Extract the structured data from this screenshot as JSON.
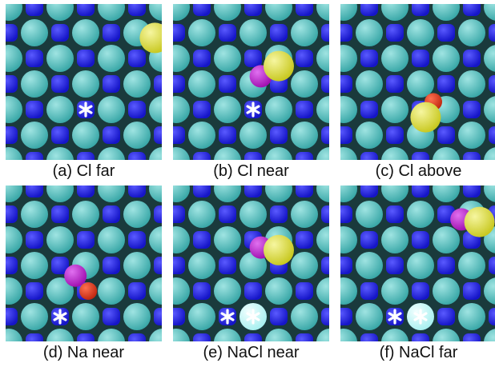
{
  "panels": [
    {
      "caption": "(a) Cl far",
      "light_ions": [
        [
          3,
          4
        ]
      ],
      "asterisks": [
        [
          3,
          4
        ]
      ],
      "adsorbates": [
        {
          "type": "cl",
          "g": [
            5.7,
            1.2
          ]
        }
      ]
    },
    {
      "caption": "(b) Cl near",
      "light_ions": [
        [
          3,
          4
        ]
      ],
      "asterisks": [
        [
          3,
          4
        ]
      ],
      "adsorbates": [
        {
          "type": "na",
          "g": [
            3.3,
            2.7
          ]
        },
        {
          "type": "cl",
          "g": [
            4.0,
            2.3
          ]
        }
      ]
    },
    {
      "caption": "(c) Cl above",
      "light_ions": [],
      "asterisks": [],
      "adsorbates": [
        {
          "type": "o",
          "g": [
            3.5,
            3.7
          ]
        },
        {
          "type": "cl",
          "g": [
            3.2,
            4.3
          ]
        }
      ]
    },
    {
      "caption": "(d) Na near",
      "light_ions": [
        [
          2,
          5
        ]
      ],
      "asterisks": [
        [
          2,
          5
        ]
      ],
      "adsorbates": [
        {
          "type": "na",
          "g": [
            2.6,
            3.4
          ]
        },
        {
          "type": "o",
          "g": [
            3.1,
            4.0
          ]
        }
      ]
    },
    {
      "caption": "(e) NaCl near",
      "light_ions": [
        [
          2,
          5
        ],
        [
          3,
          5
        ]
      ],
      "asterisks": [
        [
          2,
          5
        ],
        [
          3,
          5
        ]
      ],
      "adsorbates": [
        {
          "type": "na",
          "g": [
            3.3,
            2.3
          ]
        },
        {
          "type": "cl",
          "g": [
            4.0,
            2.4
          ]
        }
      ]
    },
    {
      "caption": "(f) NaCl far",
      "light_ions": [
        [
          2,
          5
        ],
        [
          3,
          5
        ]
      ],
      "asterisks": [
        [
          2,
          5
        ],
        [
          3,
          5
        ]
      ],
      "adsorbates": [
        {
          "type": "na",
          "g": [
            4.6,
            1.2
          ]
        },
        {
          "type": "cl",
          "g": [
            5.3,
            1.3
          ]
        }
      ]
    }
  ],
  "colors": {
    "background": "#ffffff",
    "surface_gap": "#1a3a3c",
    "teal_ion": "#3aa8a8",
    "blue_ion": "#1515c8",
    "light_ion": "#a8f0f0",
    "na_ion": "#a010b0",
    "cl_ion": "#c8c820",
    "o_ion": "#c02810",
    "asterisk": "#ffffff"
  }
}
